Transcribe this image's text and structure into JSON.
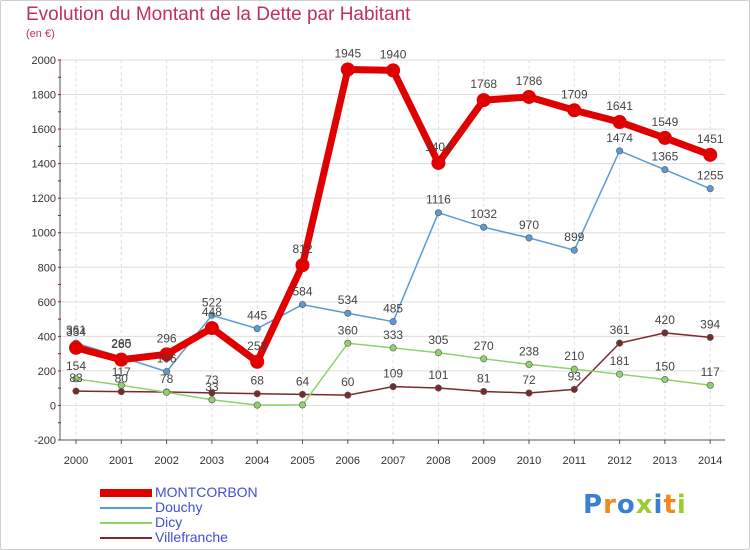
{
  "title": "Evolution du Montant de la Dette par Habitant",
  "subtitle": "(en €)",
  "logo": "Proxiti",
  "colors": {
    "title": "#c0305a",
    "legend_text": "#4050d0",
    "grid": "#dddddd",
    "axis": "#555555"
  },
  "chart_data": {
    "type": "line",
    "title": "Evolution du Montant de la Dette par Habitant",
    "ylabel": "(en €)",
    "xlabel": "",
    "ylim": [
      -200,
      2000
    ],
    "yticks": [
      -200,
      0,
      200,
      400,
      600,
      800,
      1000,
      1200,
      1400,
      1600,
      1800,
      2000
    ],
    "categories": [
      "2000",
      "2001",
      "2002",
      "2003",
      "2004",
      "2005",
      "2006",
      "2007",
      "2008",
      "2009",
      "2010",
      "2011",
      "2012",
      "2013",
      "2014"
    ],
    "legend_position": "bottom-left",
    "series": [
      {
        "name": "MONTCORBON",
        "color": "#e00000",
        "values": [
          334,
          265,
          296,
          448,
          253,
          812,
          1945,
          1940,
          1404,
          1768,
          1786,
          1709,
          1641,
          1549,
          1451
        ],
        "labels": [
          "334",
          "265",
          "296",
          "448",
          "253",
          "812",
          "1945",
          "1940",
          "1404",
          "1768",
          "1786",
          "1709",
          "1641",
          "1549",
          "1451"
        ]
      },
      {
        "name": "Douchy",
        "color": "#5b9bd5",
        "values": [
          361,
          280,
          196,
          522,
          445,
          584,
          534,
          485,
          1116,
          1032,
          970,
          899,
          1474,
          1365,
          1255
        ],
        "labels": [
          "361",
          "280",
          "196",
          "522",
          "445",
          "584",
          "534",
          "485",
          "1116",
          "1032",
          "970",
          "899",
          "1474",
          "1365",
          "1255"
        ]
      },
      {
        "name": "Dicy",
        "color": "#8fd16a",
        "values": [
          154,
          117,
          76,
          33,
          2,
          3,
          360,
          333,
          305,
          270,
          238,
          210,
          181,
          150,
          117
        ],
        "labels": [
          "154",
          "117",
          "",
          "33",
          "",
          "",
          "360",
          "333",
          "305",
          "270",
          "238",
          "210",
          "181",
          "150",
          "117"
        ]
      },
      {
        "name": "Villefranche",
        "color": "#7a2a2a",
        "values": [
          83,
          80,
          78,
          73,
          68,
          64,
          60,
          109,
          101,
          81,
          72,
          93,
          361,
          420,
          394
        ],
        "labels": [
          "83",
          "80",
          "78",
          "73",
          "68",
          "64",
          "60",
          "109",
          "101",
          "81",
          "72",
          "93",
          "361",
          "420",
          "394"
        ]
      }
    ]
  }
}
